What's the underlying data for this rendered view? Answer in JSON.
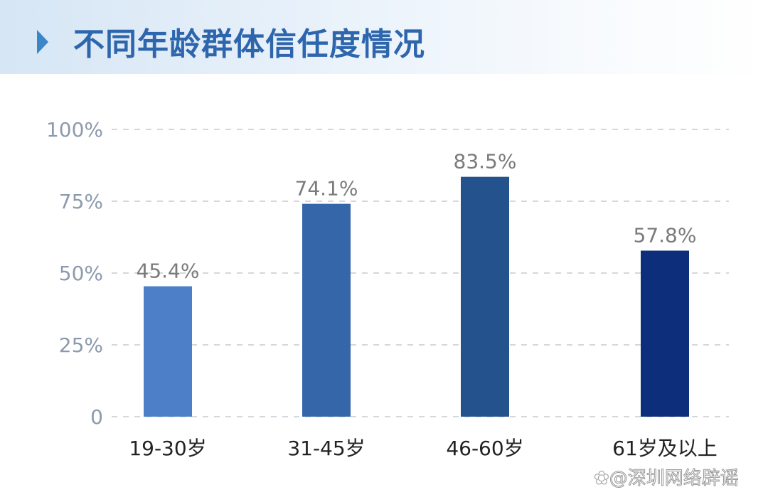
{
  "chart_data": {
    "type": "bar",
    "title": "不同年龄群体信任度情况",
    "categories": [
      "19-30岁",
      "31-45岁",
      "46-60岁",
      "61岁及以上"
    ],
    "values": [
      45.4,
      74.1,
      83.5,
      57.8
    ],
    "data_labels": [
      "45.4%",
      "74.1%",
      "83.5%",
      "57.8%"
    ],
    "ylim": [
      0,
      100
    ],
    "yticks": [
      0,
      25,
      50,
      75,
      100
    ],
    "ytick_labels": [
      "0",
      "25%",
      "50%",
      "75%",
      "100%"
    ],
    "grid": true,
    "bar_colors": [
      "#4d7fc8",
      "#3566aa",
      "#23528d",
      "#0d2f7b"
    ]
  },
  "watermark": "@深圳网络辟谣"
}
